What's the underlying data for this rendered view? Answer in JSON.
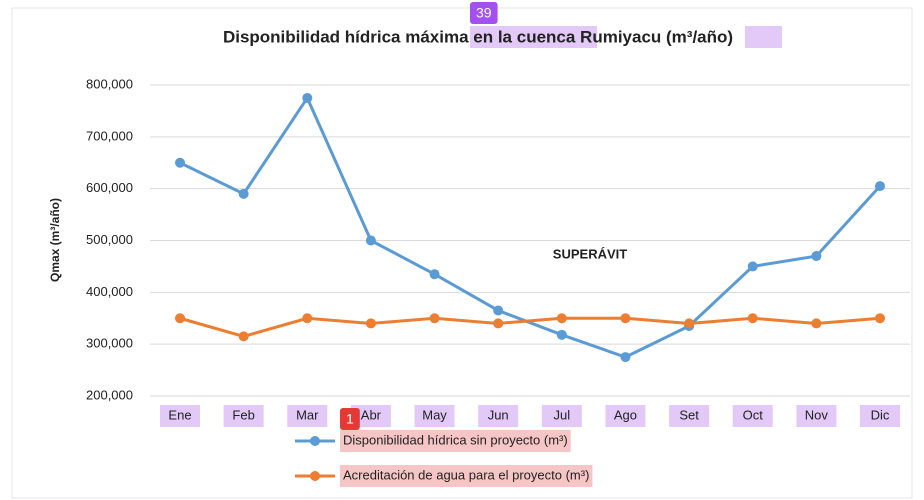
{
  "badges": [
    "39",
    "1"
  ],
  "chart_data": {
    "type": "line",
    "title": "Disponibilidad hídrica máxima en la cuenca Rumiyacu (m³/año)",
    "y_label": "Qmax (m³/año)",
    "annotation": "SUPERÁVIT",
    "categories": [
      "Ene",
      "Feb",
      "Mar",
      "Abr",
      "May",
      "Jun",
      "Jul",
      "Ago",
      "Set",
      "Oct",
      "Nov",
      "Dic"
    ],
    "series": [
      {
        "name": "Disponibilidad hídrica sin proyecto (m³)",
        "color": "#5b9bd5",
        "values": [
          650000,
          590000,
          775000,
          500000,
          435000,
          365000,
          318000,
          275000,
          335000,
          450000,
          470000,
          605000
        ]
      },
      {
        "name": "Acreditación de agua para el proyecto (m³)",
        "color": "#ed7d31",
        "values": [
          350000,
          315000,
          350000,
          340000,
          350000,
          340000,
          350000,
          350000,
          340000,
          350000,
          340000,
          350000
        ]
      }
    ],
    "ylim": [
      200000,
      800000
    ],
    "yticks": [
      {
        "value": 200000,
        "label": "200,000"
      },
      {
        "value": 300000,
        "label": "300,000"
      },
      {
        "value": 400000,
        "label": "400,000"
      },
      {
        "value": 500000,
        "label": "500,000"
      },
      {
        "value": 600000,
        "label": "600,000"
      },
      {
        "value": 700000,
        "label": "700,000"
      },
      {
        "value": 800000,
        "label": "800,000"
      }
    ],
    "grid": true
  }
}
